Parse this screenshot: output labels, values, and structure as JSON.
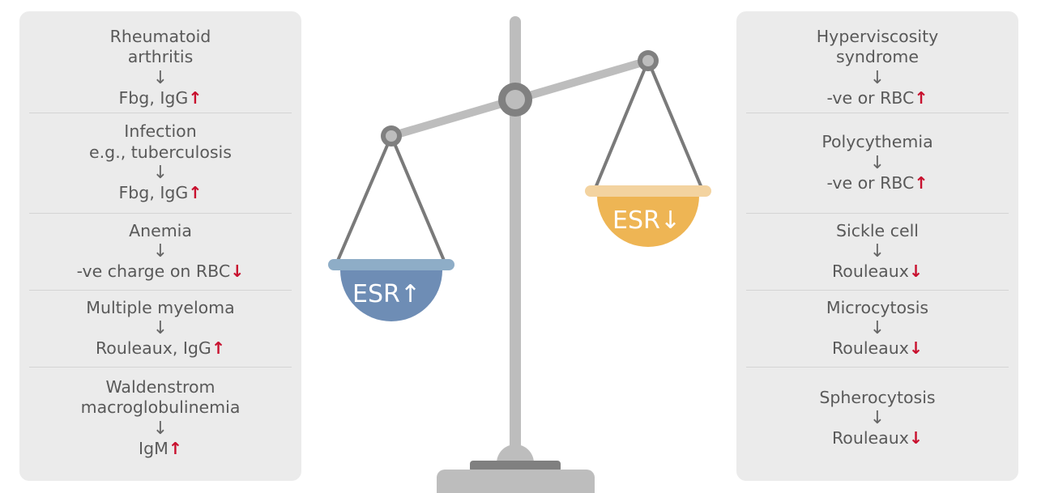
{
  "colors": {
    "panel": "#ebebeb",
    "text": "#595959",
    "red_arrow": "#c8102e",
    "scale_gray": "#bdbdbd",
    "scale_dark": "#808080",
    "left_pan_rim": "#8eadc7",
    "left_pan": "#6e8db5",
    "right_pan_rim": "#f3d3a0",
    "right_pan": "#eeb554"
  },
  "left_pan_label": "ESR↑",
  "right_pan_label": "ESR↓",
  "left_panel": [
    {
      "cause": [
        "Rheumatoid",
        "arthritis"
      ],
      "arrow": "↓",
      "effect": "Fbg, IgG",
      "dir": "↑"
    },
    {
      "cause": [
        "Infection",
        "e.g., tuberculosis"
      ],
      "arrow": "↓",
      "effect": "Fbg, IgG",
      "dir": "↑"
    },
    {
      "cause": [
        "Anemia"
      ],
      "arrow": "↓",
      "effect": "-ve charge on RBC",
      "dir": "↓"
    },
    {
      "cause": [
        "Multiple myeloma"
      ],
      "arrow": "↓",
      "effect": "Rouleaux, IgG",
      "dir": "↑"
    },
    {
      "cause": [
        "Waldenstrom",
        "macroglobulinemia"
      ],
      "arrow": "↓",
      "effect": "IgM",
      "dir": "↑"
    }
  ],
  "right_panel": [
    {
      "cause": [
        "Hyperviscosity",
        "syndrome"
      ],
      "arrow": "↓",
      "effect": "-ve or RBC",
      "dir": "↑"
    },
    {
      "cause": [
        "Polycythemia"
      ],
      "arrow": "↓",
      "effect": "-ve or RBC",
      "dir": "↑"
    },
    {
      "cause": [
        "Sickle cell"
      ],
      "arrow": "↓",
      "effect": "Rouleaux",
      "dir": "↓"
    },
    {
      "cause": [
        "Microcytosis"
      ],
      "arrow": "↓",
      "effect": "Rouleaux",
      "dir": "↓"
    },
    {
      "cause": [
        "Spherocytosis"
      ],
      "arrow": "↓",
      "effect": "Rouleaux",
      "dir": "↓"
    }
  ]
}
